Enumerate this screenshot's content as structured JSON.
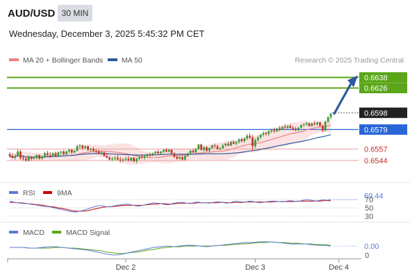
{
  "header": {
    "symbol": "AUD/USD",
    "timeframe": "30 MIN",
    "datetime": "Wednesday, December 3, 2025 5:45:32 PM CET",
    "credit": "Research © 2025 Trading Central"
  },
  "colors": {
    "green_level": "#5aa618",
    "blue_level": "#2966d6",
    "red_level": "#c9302c",
    "candle_up": "#3a9a3a",
    "candle_down": "#c0392b",
    "bollinger_fill": "#f9d9d9",
    "ma20": "#f08080",
    "ma50": "#2c5a9e",
    "rsi": "#5a7ad6",
    "rsi_ma": "#cc0000",
    "macd": "#5a7ad6",
    "macd_signal": "#5aa618",
    "arrow": "#2c5a9e"
  },
  "chart_data": [
    {
      "type": "candlestick",
      "title": "",
      "legend": [
        {
          "name": "MA 20 + Bollinger Bands",
          "color": "#f08080"
        },
        {
          "name": "MA 50",
          "color": "#2c5a9e"
        }
      ],
      "ylim": [
        0.6525,
        0.6647
      ],
      "x_ticks": [
        {
          "label": "Dec 2",
          "index": 43
        },
        {
          "label": "Dec 3",
          "index": 91
        },
        {
          "label": "Dec 4",
          "index": 122
        }
      ],
      "levels": [
        {
          "value": 0.6638,
          "label": "0.6638",
          "style": "green"
        },
        {
          "value": 0.6626,
          "label": "0.6626",
          "style": "green"
        },
        {
          "value": 0.6598,
          "label": "0.6598",
          "style": "current"
        },
        {
          "value": 0.6579,
          "label": "0.6579",
          "style": "blue"
        },
        {
          "value": 0.6557,
          "label": "0.6557",
          "style": "red"
        },
        {
          "value": 0.6544,
          "label": "0.6544",
          "style": "red"
        }
      ],
      "forecast_arrow": {
        "from": 0.6597,
        "to": 0.6638
      },
      "candles_ohlc": [
        [
          0.6551,
          0.6553,
          0.6547,
          0.6549
        ],
        [
          0.6549,
          0.6552,
          0.6546,
          0.6547
        ],
        [
          0.6547,
          0.6551,
          0.6545,
          0.6549
        ],
        [
          0.6549,
          0.6557,
          0.6548,
          0.6554
        ],
        [
          0.6554,
          0.6556,
          0.6545,
          0.6547
        ],
        [
          0.6547,
          0.655,
          0.6544,
          0.6546
        ],
        [
          0.6546,
          0.6548,
          0.6543,
          0.6544
        ],
        [
          0.6544,
          0.655,
          0.6543,
          0.6548
        ],
        [
          0.6548,
          0.6549,
          0.6544,
          0.6546
        ],
        [
          0.6546,
          0.6549,
          0.6545,
          0.6547
        ],
        [
          0.6547,
          0.6551,
          0.6545,
          0.655
        ],
        [
          0.655,
          0.6551,
          0.6545,
          0.6546
        ],
        [
          0.6546,
          0.655,
          0.6545,
          0.6548
        ],
        [
          0.6548,
          0.6554,
          0.6547,
          0.6552
        ],
        [
          0.6552,
          0.6555,
          0.6549,
          0.655
        ],
        [
          0.655,
          0.6553,
          0.6547,
          0.6549
        ],
        [
          0.6549,
          0.6553,
          0.6548,
          0.6552
        ],
        [
          0.6552,
          0.6554,
          0.6548,
          0.6549
        ],
        [
          0.6549,
          0.6554,
          0.6548,
          0.6553
        ],
        [
          0.6553,
          0.6555,
          0.655,
          0.6554
        ],
        [
          0.6554,
          0.6556,
          0.655,
          0.6551
        ],
        [
          0.6551,
          0.6555,
          0.655,
          0.6554
        ],
        [
          0.6554,
          0.6557,
          0.6552,
          0.6556
        ],
        [
          0.6556,
          0.6557,
          0.6551,
          0.6553
        ],
        [
          0.6553,
          0.6556,
          0.6552,
          0.6555
        ],
        [
          0.6555,
          0.6562,
          0.6554,
          0.656
        ],
        [
          0.656,
          0.6563,
          0.6557,
          0.6561
        ],
        [
          0.6561,
          0.6562,
          0.6556,
          0.6558
        ],
        [
          0.6558,
          0.6561,
          0.6557,
          0.656
        ],
        [
          0.656,
          0.6561,
          0.6555,
          0.6556
        ],
        [
          0.6556,
          0.6558,
          0.6554,
          0.6557
        ],
        [
          0.6557,
          0.6559,
          0.6554,
          0.6555
        ],
        [
          0.6555,
          0.6557,
          0.6552,
          0.6554
        ],
        [
          0.6554,
          0.6556,
          0.6551,
          0.6552
        ],
        [
          0.6552,
          0.6555,
          0.655,
          0.6553
        ],
        [
          0.6553,
          0.6554,
          0.6548,
          0.6549
        ],
        [
          0.6549,
          0.6552,
          0.6546,
          0.6547
        ],
        [
          0.6547,
          0.6549,
          0.6544,
          0.6545
        ],
        [
          0.6545,
          0.6548,
          0.6543,
          0.6546
        ],
        [
          0.6546,
          0.6549,
          0.6544,
          0.6547
        ],
        [
          0.6547,
          0.655,
          0.6544,
          0.6545
        ],
        [
          0.6545,
          0.6548,
          0.6542,
          0.6544
        ],
        [
          0.6544,
          0.6547,
          0.6542,
          0.6545
        ],
        [
          0.6545,
          0.6548,
          0.6543,
          0.6546
        ],
        [
          0.6546,
          0.6549,
          0.6543,
          0.6544
        ],
        [
          0.6544,
          0.6548,
          0.6543,
          0.6547
        ],
        [
          0.6547,
          0.6548,
          0.6542,
          0.6543
        ],
        [
          0.6543,
          0.6547,
          0.6541,
          0.6546
        ],
        [
          0.6546,
          0.6549,
          0.6544,
          0.6548
        ],
        [
          0.6548,
          0.6551,
          0.6546,
          0.6547
        ],
        [
          0.6547,
          0.655,
          0.6545,
          0.6549
        ],
        [
          0.6549,
          0.6552,
          0.6547,
          0.6551
        ],
        [
          0.6551,
          0.6553,
          0.6548,
          0.655
        ],
        [
          0.655,
          0.6553,
          0.6549,
          0.6552
        ],
        [
          0.6552,
          0.6555,
          0.655,
          0.6554
        ],
        [
          0.6554,
          0.6556,
          0.6551,
          0.6552
        ],
        [
          0.6552,
          0.6555,
          0.6551,
          0.6554
        ],
        [
          0.6554,
          0.6557,
          0.6552,
          0.6556
        ],
        [
          0.6556,
          0.6558,
          0.6553,
          0.6554
        ],
        [
          0.6554,
          0.6557,
          0.6553,
          0.6556
        ],
        [
          0.6556,
          0.6557,
          0.6551,
          0.6552
        ],
        [
          0.6552,
          0.6553,
          0.6547,
          0.6548
        ],
        [
          0.6548,
          0.655,
          0.6545,
          0.6546
        ],
        [
          0.6546,
          0.6549,
          0.6545,
          0.6548
        ],
        [
          0.6548,
          0.6549,
          0.6544,
          0.6545
        ],
        [
          0.6545,
          0.655,
          0.6544,
          0.6549
        ],
        [
          0.6549,
          0.6553,
          0.6548,
          0.6552
        ],
        [
          0.6552,
          0.6556,
          0.6551,
          0.6555
        ],
        [
          0.6555,
          0.6557,
          0.6552,
          0.6553
        ],
        [
          0.6553,
          0.6558,
          0.6552,
          0.6557
        ],
        [
          0.6557,
          0.6563,
          0.6556,
          0.6562
        ],
        [
          0.6562,
          0.6563,
          0.6555,
          0.6556
        ],
        [
          0.6556,
          0.656,
          0.6554,
          0.6559
        ],
        [
          0.6559,
          0.656,
          0.6554,
          0.6555
        ],
        [
          0.6555,
          0.6559,
          0.6553,
          0.6558
        ],
        [
          0.6558,
          0.6562,
          0.6557,
          0.6561
        ],
        [
          0.6561,
          0.6563,
          0.6558,
          0.656
        ],
        [
          0.656,
          0.6562,
          0.6556,
          0.6557
        ],
        [
          0.6557,
          0.6559,
          0.6555,
          0.6558
        ],
        [
          0.6558,
          0.6563,
          0.6557,
          0.6561
        ],
        [
          0.6561,
          0.6564,
          0.6559,
          0.6563
        ],
        [
          0.6563,
          0.6565,
          0.656,
          0.6561
        ],
        [
          0.6561,
          0.6566,
          0.656,
          0.6565
        ],
        [
          0.6565,
          0.6567,
          0.6562,
          0.6563
        ],
        [
          0.6563,
          0.6566,
          0.6561,
          0.6565
        ],
        [
          0.6565,
          0.6569,
          0.6563,
          0.6568
        ],
        [
          0.6568,
          0.657,
          0.6564,
          0.6566
        ],
        [
          0.6566,
          0.657,
          0.6564,
          0.6569
        ],
        [
          0.6569,
          0.6574,
          0.6567,
          0.6572
        ],
        [
          0.6572,
          0.6575,
          0.6568,
          0.657
        ],
        [
          0.657,
          0.6573,
          0.6555,
          0.656
        ],
        [
          0.656,
          0.6569,
          0.6558,
          0.6567
        ],
        [
          0.6567,
          0.6572,
          0.6565,
          0.657
        ],
        [
          0.657,
          0.6574,
          0.6568,
          0.6573
        ],
        [
          0.6573,
          0.6577,
          0.6571,
          0.6575
        ],
        [
          0.6575,
          0.6577,
          0.6572,
          0.6574
        ],
        [
          0.6574,
          0.6578,
          0.6572,
          0.6577
        ],
        [
          0.6577,
          0.658,
          0.6575,
          0.6578
        ],
        [
          0.6578,
          0.6581,
          0.6575,
          0.6577
        ],
        [
          0.6577,
          0.6581,
          0.6576,
          0.658
        ],
        [
          0.658,
          0.6583,
          0.6577,
          0.6579
        ],
        [
          0.6579,
          0.6583,
          0.6578,
          0.6582
        ],
        [
          0.6582,
          0.6585,
          0.6579,
          0.6581
        ],
        [
          0.6581,
          0.6584,
          0.6579,
          0.6583
        ],
        [
          0.6583,
          0.6585,
          0.658,
          0.6581
        ],
        [
          0.6581,
          0.6583,
          0.6578,
          0.658
        ],
        [
          0.658,
          0.6582,
          0.6577,
          0.6579
        ],
        [
          0.6579,
          0.6582,
          0.6577,
          0.6581
        ],
        [
          0.6581,
          0.6585,
          0.658,
          0.6584
        ],
        [
          0.6584,
          0.6586,
          0.6582,
          0.6585
        ],
        [
          0.6585,
          0.6588,
          0.6583,
          0.6586
        ],
        [
          0.6586,
          0.6587,
          0.6582,
          0.6583
        ],
        [
          0.6583,
          0.6587,
          0.6582,
          0.6586
        ],
        [
          0.6586,
          0.6589,
          0.6583,
          0.6585
        ],
        [
          0.6585,
          0.6588,
          0.6583,
          0.6587
        ],
        [
          0.6587,
          0.6588,
          0.6582,
          0.6583
        ],
        [
          0.6583,
          0.6585,
          0.6576,
          0.6578
        ],
        [
          0.6578,
          0.6589,
          0.6577,
          0.6588
        ],
        [
          0.6588,
          0.6594,
          0.6586,
          0.6593
        ],
        [
          0.6593,
          0.6598,
          0.6591,
          0.6597
        ]
      ]
    },
    {
      "type": "line",
      "title": "",
      "legend": [
        {
          "name": "RSI",
          "color": "#5a7ad6"
        },
        {
          "name": "9MA",
          "color": "#cc0000"
        }
      ],
      "value_label": "69.44",
      "y_ticks": [
        "70",
        "50",
        "30"
      ],
      "ylim": [
        25,
        75
      ],
      "series": [
        {
          "name": "RSI",
          "values": [
            66,
            64,
            62,
            61,
            60,
            60,
            58,
            57,
            55,
            54,
            53,
            52,
            50,
            48,
            46,
            44,
            42,
            40,
            40,
            42,
            44,
            47,
            50,
            53,
            55,
            55,
            53,
            52,
            54,
            56,
            57,
            58,
            59,
            57,
            55,
            54,
            56,
            58,
            60,
            62,
            61,
            60,
            58,
            57,
            60,
            62,
            63,
            63,
            61,
            60,
            63,
            64,
            62,
            62,
            61,
            63,
            64,
            64,
            62,
            61,
            63,
            66,
            65,
            64,
            64,
            66,
            65,
            63,
            62,
            64,
            65,
            66,
            66,
            65,
            64,
            66,
            67,
            66,
            65,
            67,
            69,
            69,
            68,
            66,
            68,
            69,
            68,
            69.44
          ]
        },
        {
          "name": "9MA",
          "values": [
            63,
            63,
            62,
            62,
            61,
            60,
            59,
            58,
            57,
            56,
            54,
            53,
            52,
            50,
            49,
            47,
            45,
            43,
            42,
            42,
            42,
            43,
            45,
            47,
            49,
            51,
            52,
            53,
            53,
            54,
            55,
            56,
            56,
            56,
            56,
            56,
            56,
            57,
            58,
            59,
            59,
            60,
            60,
            59,
            59,
            60,
            61,
            61,
            61,
            61,
            61,
            62,
            62,
            62,
            62,
            62,
            62,
            63,
            63,
            62,
            62,
            63,
            63,
            63,
            64,
            64,
            64,
            64,
            64,
            64,
            64,
            64,
            65,
            65,
            65,
            65,
            65,
            65,
            66,
            66,
            66,
            66,
            66,
            66,
            66,
            67,
            67,
            67
          ]
        }
      ]
    },
    {
      "type": "line",
      "title": "",
      "legend": [
        {
          "name": "MACD",
          "color": "#5a7ad6"
        },
        {
          "name": "MACD Signal",
          "color": "#5aa618"
        }
      ],
      "value_label": "0.00",
      "y_ticks": [
        "0"
      ],
      "ylim": [
        -0.0016,
        0.0012
      ],
      "series": [
        {
          "name": "MACD",
          "values": [
            -0.0002,
            -0.0002,
            -0.0002,
            -0.0003,
            -0.0003,
            -0.0002,
            -0.0001,
            -0.0001,
            -0.0002,
            -0.0003,
            -0.0004,
            -0.0005,
            -0.0006,
            -0.0008,
            -0.001,
            -0.0012,
            -0.0013,
            -0.0012,
            -0.001,
            -0.0008,
            -0.0006,
            -0.0004,
            -0.0002,
            -0.0001,
            0.0,
            -0.0001,
            0.0,
            0.0001,
            0.0001,
            0.0,
            -0.0001,
            0.0,
            0.0001,
            0.0002,
            0.0003,
            0.0004,
            0.0005,
            0.0005,
            0.0006,
            0.0006,
            0.0006,
            0.0005,
            0.0004,
            0.0003,
            0.0003,
            0.0003,
            0.0002,
            0.0001,
            0.0001,
            0.0
          ]
        },
        {
          "name": "MACD Signal",
          "values": [
            -0.0002,
            -0.0002,
            -0.0002,
            -0.0003,
            -0.0003,
            -0.0003,
            -0.0003,
            -0.0002,
            -0.0002,
            -0.0003,
            -0.0003,
            -0.0004,
            -0.0005,
            -0.0006,
            -0.0007,
            -0.0009,
            -0.001,
            -0.0011,
            -0.001,
            -0.0009,
            -0.0008,
            -0.0006,
            -0.0005,
            -0.0003,
            -0.0002,
            -0.0001,
            -0.0001,
            0.0,
            0.0,
            0.0,
            0.0,
            0.0,
            0.0001,
            0.0001,
            0.0002,
            0.0003,
            0.0003,
            0.0004,
            0.0005,
            0.0005,
            0.0006,
            0.0005,
            0.0005,
            0.0004,
            0.0004,
            0.0003,
            0.0003,
            0.0002,
            0.0002,
            0.0001
          ]
        }
      ]
    }
  ]
}
